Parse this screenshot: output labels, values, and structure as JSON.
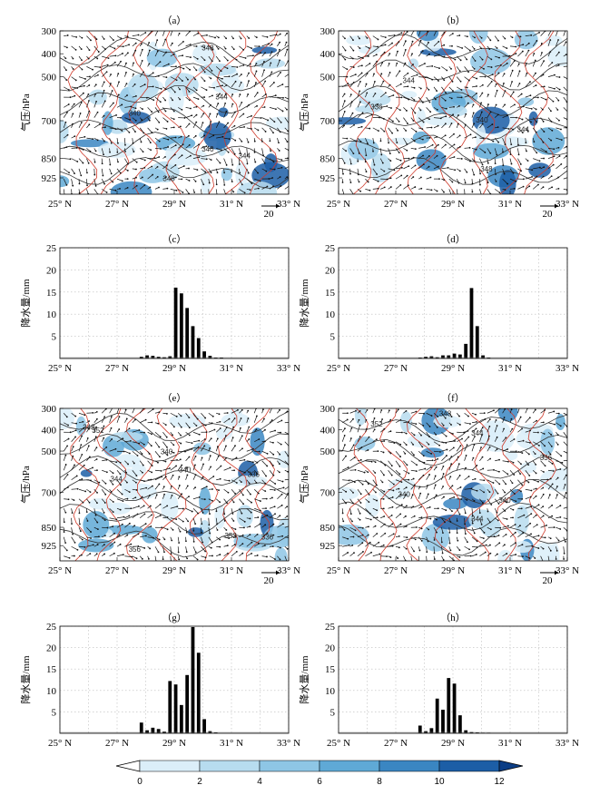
{
  "figure": {
    "x_ticks": [
      "25° N",
      "27° N",
      "29° N",
      "31° N",
      "33° N"
    ],
    "pressure_ticks": [
      "300",
      "400",
      "500",
      "700",
      "850",
      "925"
    ],
    "pressure_ylabel": "气压/hPa",
    "precip_ylabel": "降水量/mm",
    "wind_ref": "20",
    "colorbar": {
      "ticks": [
        "0",
        "2",
        "4",
        "6",
        "8",
        "10",
        "12"
      ],
      "colors": [
        "#ffffff",
        "#dbeef9",
        "#b7dcef",
        "#8ec6e5",
        "#5fa9d6",
        "#3a86c2",
        "#1c5ea6",
        "#0b3d85"
      ]
    }
  },
  "chart_data": [
    {
      "type": "vector-contour-crosssection",
      "label": "（a）",
      "x_ticks": [
        "25° N",
        "27° N",
        "29° N",
        "31° N",
        "33° N"
      ],
      "y_ticks": [
        "300",
        "400",
        "500",
        "700",
        "850",
        "925"
      ],
      "ylabel": "气压/hPa",
      "contour_labels": [
        "348",
        "344",
        "340",
        "340",
        "344",
        "348"
      ],
      "wind_ref": "20"
    },
    {
      "type": "vector-contour-crosssection",
      "label": "（b）",
      "x_ticks": [
        "25° N",
        "27° N",
        "29° N",
        "31° N",
        "33° N"
      ],
      "y_ticks": [
        "300",
        "400",
        "500",
        "700",
        "850",
        "925"
      ],
      "ylabel": "气压/hPa",
      "contour_labels": [
        "344",
        "336",
        "340",
        "344",
        "348"
      ],
      "wind_ref": "20"
    },
    {
      "type": "bar",
      "label": "（c）",
      "ylabel": "降水量/mm",
      "x": [
        27.85,
        28.05,
        28.25,
        28.45,
        28.65,
        28.85,
        29.05,
        29.25,
        29.45,
        29.65,
        29.85,
        30.05,
        30.25,
        30.45,
        30.65
      ],
      "values": [
        0.4,
        0.7,
        0.6,
        0.4,
        0.3,
        0.5,
        16,
        14.7,
        11.4,
        7.3,
        4.6,
        1.6,
        0.6,
        0.2,
        0.2
      ],
      "xlim": [
        25,
        33
      ],
      "ylim": [
        0,
        25
      ],
      "yticks": [
        "5",
        "10",
        "15",
        "20",
        "25"
      ]
    },
    {
      "type": "bar",
      "label": "（d）",
      "ylabel": "降水量/mm",
      "x": [
        27.85,
        28.05,
        28.25,
        28.45,
        28.65,
        28.85,
        29.05,
        29.25,
        29.45,
        29.65,
        29.85,
        30.05,
        30.25
      ],
      "values": [
        0.2,
        0.4,
        0.5,
        0.3,
        0.7,
        0.7,
        1.1,
        0.9,
        3.3,
        15.9,
        7.3,
        0.7,
        0.2
      ],
      "xlim": [
        25,
        33
      ],
      "ylim": [
        0,
        25
      ],
      "yticks": [
        "5",
        "10",
        "15",
        "20",
        "25"
      ]
    },
    {
      "type": "vector-contour-crosssection",
      "label": "（e）",
      "x_ticks": [
        "25° N",
        "27° N",
        "29° N",
        "31° N",
        "33° N"
      ],
      "y_ticks": [
        "300",
        "400",
        "500",
        "700",
        "850",
        "925"
      ],
      "ylabel": "气压/hPa",
      "contour_labels": [
        "348",
        "352",
        "340",
        "340",
        "336",
        "344",
        "356",
        "352",
        "336"
      ],
      "wind_ref": "20"
    },
    {
      "type": "vector-contour-crosssection",
      "label": "（f）",
      "x_ticks": [
        "25° N",
        "27° N",
        "29° N",
        "31° N",
        "33° N"
      ],
      "y_ticks": [
        "300",
        "400",
        "500",
        "700",
        "850",
        "925"
      ],
      "ylabel": "气压/hPa",
      "contour_labels": [
        "352",
        "348",
        "344",
        "336",
        "340",
        "340",
        "344"
      ],
      "wind_ref": "20"
    },
    {
      "type": "bar",
      "label": "（g）",
      "ylabel": "降水量/mm",
      "x": [
        27.85,
        28.05,
        28.25,
        28.45,
        28.65,
        28.85,
        29.05,
        29.25,
        29.45,
        29.65,
        29.85,
        30.05,
        30.25,
        30.45
      ],
      "values": [
        2.5,
        0.7,
        1.3,
        1.0,
        0.4,
        12.2,
        11.4,
        6.6,
        13.6,
        24.8,
        18.8,
        3.3,
        0.5,
        0.2
      ],
      "xlim": [
        25,
        33
      ],
      "ylim": [
        0,
        25
      ],
      "yticks": [
        "5",
        "10",
        "15",
        "20",
        "25"
      ]
    },
    {
      "type": "bar",
      "label": "（h）",
      "ylabel": "降水量/mm",
      "x": [
        27.85,
        28.05,
        28.25,
        28.45,
        28.65,
        28.85,
        29.05,
        29.25,
        29.45,
        29.65,
        29.85,
        30.05,
        30.25
      ],
      "values": [
        1.8,
        0.5,
        1.2,
        8.1,
        5.5,
        12.9,
        11.6,
        4.2,
        0.7,
        0.3,
        0.2,
        0.1,
        0.1
      ],
      "xlim": [
        25,
        33
      ],
      "ylim": [
        0,
        25
      ],
      "yticks": [
        "5",
        "10",
        "15",
        "20",
        "25"
      ]
    }
  ]
}
